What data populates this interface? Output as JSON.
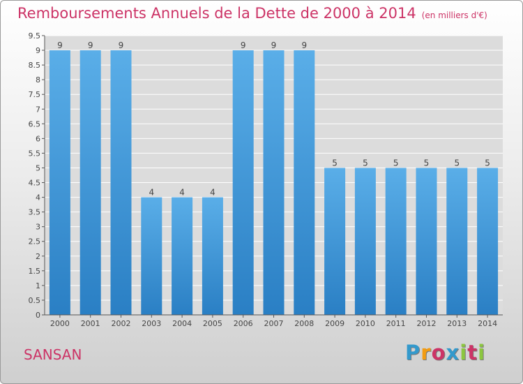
{
  "chart_data": {
    "type": "bar",
    "title": "Remboursements Annuels de la Dette de 2000 à 2014",
    "unit": "(en milliers d'€)",
    "categories": [
      "2000",
      "2001",
      "2002",
      "2003",
      "2004",
      "2005",
      "2006",
      "2007",
      "2008",
      "2009",
      "2010",
      "2011",
      "2012",
      "2013",
      "2014"
    ],
    "values": [
      9,
      9,
      9,
      4,
      4,
      4,
      9,
      9,
      9,
      5,
      5,
      5,
      5,
      5,
      5
    ],
    "ylim": [
      0,
      9.5
    ],
    "yticks": [
      0,
      0.5,
      1,
      1.5,
      2,
      2.5,
      3,
      3.5,
      4,
      4.5,
      5,
      5.5,
      6,
      6.5,
      7,
      7.5,
      8,
      8.5,
      9,
      9.5
    ],
    "ytick_labels": [
      "0",
      "0.5",
      "1",
      "1.5",
      "2",
      "2.5",
      "3",
      "3.5",
      "4",
      "4.5",
      "5",
      "5.5",
      "6",
      "6.5",
      "7",
      "7.5",
      "8",
      "8.5",
      "9",
      "9.5"
    ],
    "grid": true,
    "bar_color": "#4a9fe0"
  },
  "commune": "SANSAN",
  "logo": {
    "letters": [
      "P",
      "r",
      "o",
      "x",
      "i",
      "t",
      "i"
    ],
    "colors": [
      "#3399cc",
      "#f39c12",
      "#cc3366",
      "#3399cc",
      "#8cc63f",
      "#cc3366",
      "#8cc63f"
    ]
  }
}
